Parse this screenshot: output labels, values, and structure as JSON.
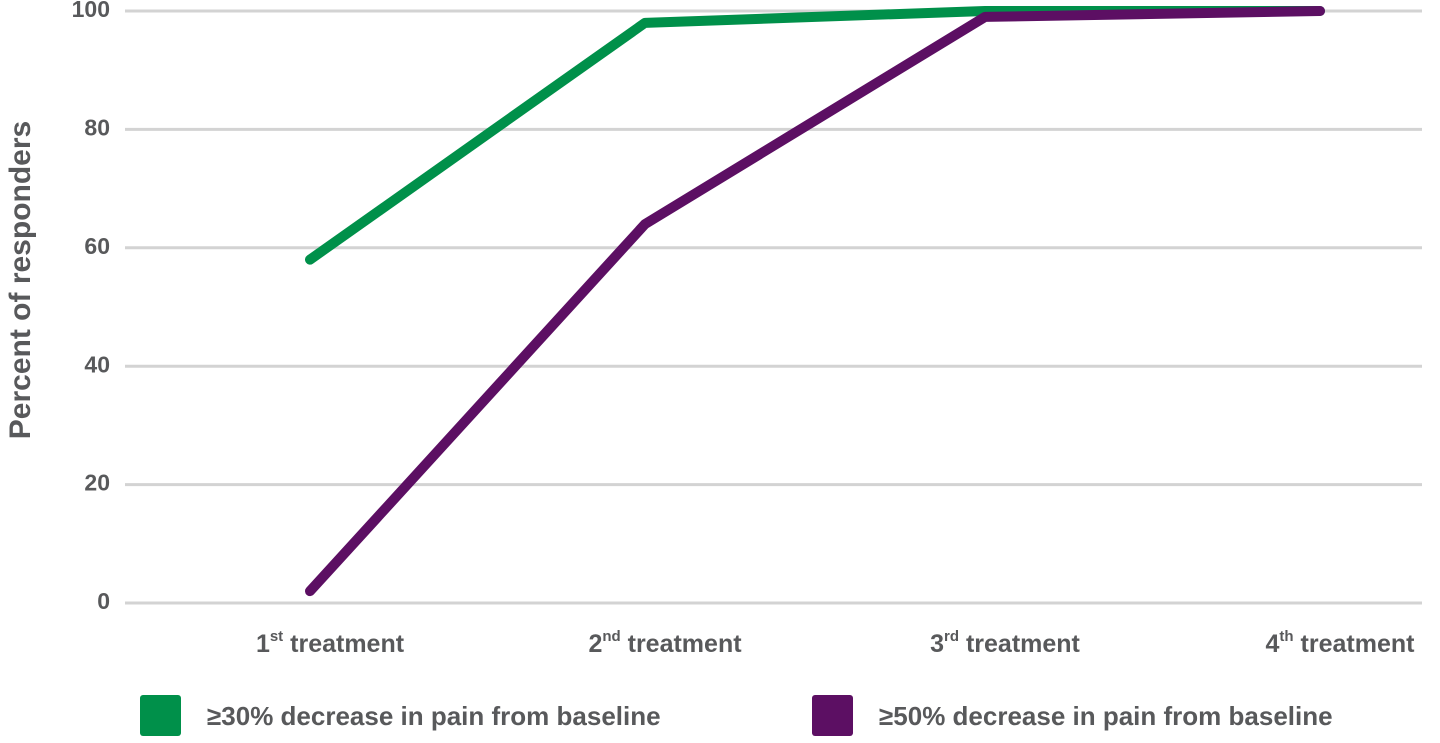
{
  "chart_data": {
    "type": "line",
    "y_label": "Percent of responders",
    "categories": [
      "1st treatment",
      "2nd treatment",
      "3rd treatment",
      "4th treatment"
    ],
    "series": [
      {
        "name": "≥30% decrease in pain from baseline",
        "color": "#00904a",
        "values": [
          58,
          98,
          100,
          100
        ]
      },
      {
        "name": "≥50% decrease in pain from baseline",
        "color": "#5c0f63",
        "values": [
          2,
          64,
          99,
          100
        ]
      }
    ],
    "ylim": [
      0,
      100
    ],
    "yticks": [
      0,
      20,
      40,
      60,
      80,
      100
    ],
    "grid": true,
    "legend": "bottom"
  }
}
